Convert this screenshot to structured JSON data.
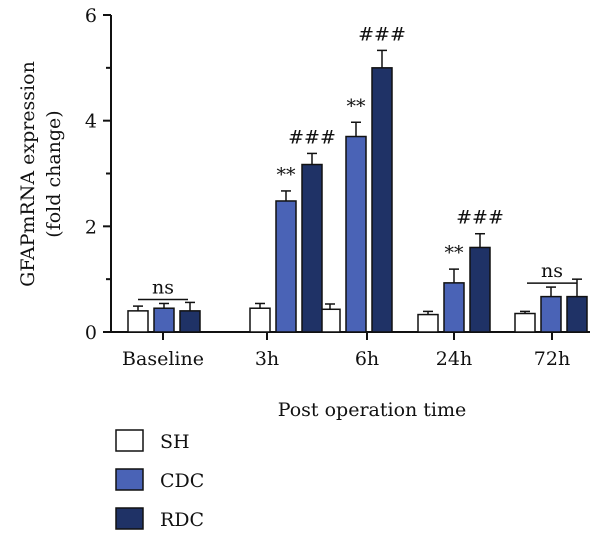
{
  "chart_data": {
    "type": "bar",
    "ylabel_lines": [
      "GFAPmRNA expression",
      "(fold change)"
    ],
    "xlabel": "Post operation time",
    "categories": [
      "Baseline",
      "3h",
      "6h",
      "24h",
      "72h"
    ],
    "ylim": [
      0,
      6
    ],
    "yticks": [
      0,
      2,
      4,
      6
    ],
    "ytick_labels": [
      "0",
      "2",
      "4",
      "6"
    ],
    "minor_yticks": [
      1,
      3,
      5
    ],
    "series": [
      {
        "name": "SH",
        "color": "#ffffff",
        "values": [
          0.4,
          0.45,
          0.43,
          0.33,
          0.35
        ],
        "errors": [
          0.09,
          0.09,
          0.1,
          0.06,
          0.04
        ]
      },
      {
        "name": "CDC",
        "color": "#4a63b6",
        "values": [
          0.45,
          2.48,
          3.7,
          0.93,
          0.67
        ],
        "errors": [
          0.09,
          0.19,
          0.27,
          0.26,
          0.18
        ]
      },
      {
        "name": "RDC",
        "color": "#1f3266",
        "values": [
          0.4,
          3.17,
          5.0,
          1.6,
          0.67
        ],
        "errors": [
          0.16,
          0.21,
          0.33,
          0.26,
          0.33
        ]
      }
    ],
    "annotations": [
      {
        "category": "Baseline",
        "series": "CDC",
        "text": "ns",
        "underline": true
      },
      {
        "category": "3h",
        "series": "CDC",
        "text": "**"
      },
      {
        "category": "3h",
        "series": "RDC",
        "text": "###"
      },
      {
        "category": "6h",
        "series": "CDC",
        "text": "**"
      },
      {
        "category": "6h",
        "series": "RDC",
        "text": "###"
      },
      {
        "category": "24h",
        "series": "CDC",
        "text": "**"
      },
      {
        "category": "24h",
        "series": "RDC",
        "text": "###"
      },
      {
        "category": "72h",
        "series": "CDC",
        "text": "ns",
        "underline": true
      }
    ],
    "legend": {
      "position": "bottom-left",
      "entries": [
        "SH",
        "CDC",
        "RDC"
      ]
    },
    "grid": false
  }
}
